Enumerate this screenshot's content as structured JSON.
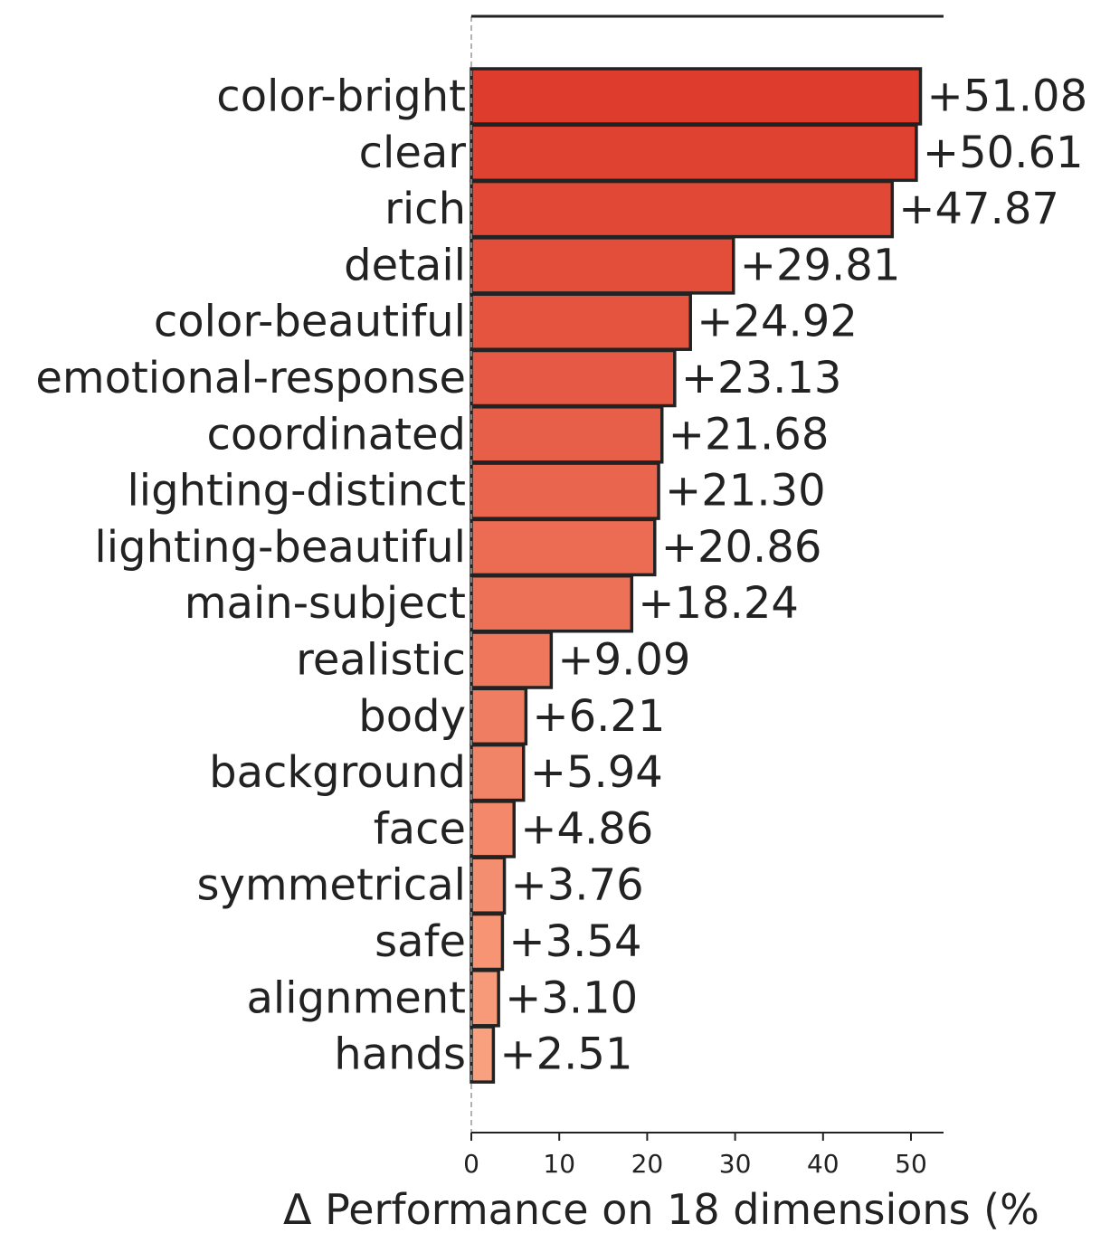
{
  "chart_data": {
    "type": "bar",
    "orientation": "horizontal",
    "categories": [
      "color-bright",
      "clear",
      "rich",
      "detail",
      "color-beautiful",
      "emotional-response",
      "coordinated",
      "lighting-distinct",
      "lighting-beautiful",
      "main-subject",
      "realistic",
      "body",
      "background",
      "face",
      "symmetrical",
      "safe",
      "alignment",
      "hands"
    ],
    "values": [
      51.08,
      50.61,
      47.87,
      29.81,
      24.92,
      23.13,
      21.68,
      21.3,
      20.86,
      18.24,
      9.09,
      6.21,
      5.94,
      4.86,
      3.76,
      3.54,
      3.1,
      2.51
    ],
    "value_labels": [
      "+51.08",
      "+50.61",
      "+47.87",
      "+29.81",
      "+24.92",
      "+23.13",
      "+21.68",
      "+21.30",
      "+20.86",
      "+18.24",
      "+9.09",
      "+6.21",
      "+5.94",
      "+4.86",
      "+3.76",
      "+3.54",
      "+3.10",
      "+2.51"
    ],
    "xlabel": "Δ Performance on 18 dimensions (%",
    "ylabel": "",
    "title": "",
    "xlim": [
      0,
      53.7
    ],
    "xticks": [
      0,
      10,
      20,
      30,
      40,
      50
    ],
    "xtick_labels": [
      "0",
      "10",
      "20",
      "30",
      "40",
      "50"
    ],
    "grid": false,
    "zero_line": "dashed",
    "colors": {
      "high": "#de3c2c",
      "low": "#f9a07e",
      "edge": "#222222"
    }
  }
}
